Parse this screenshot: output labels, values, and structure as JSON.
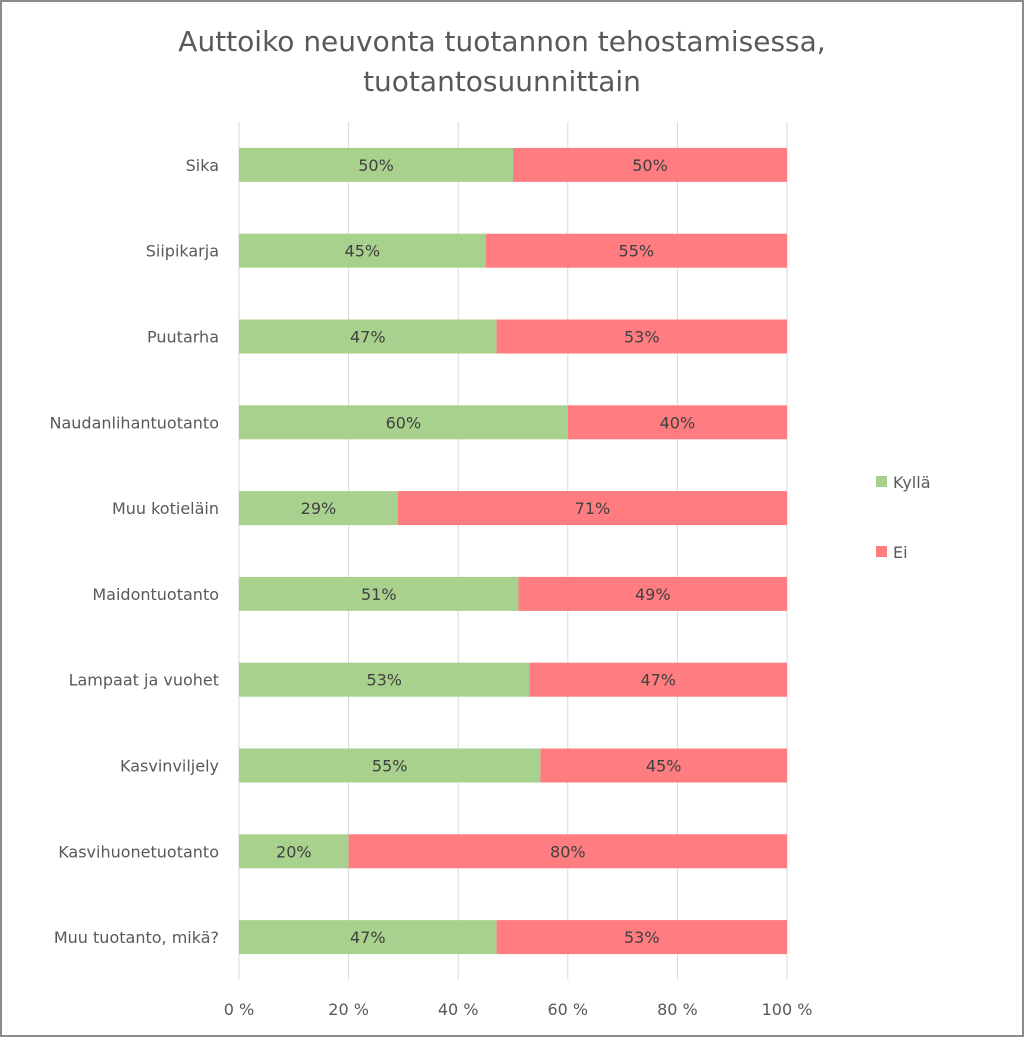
{
  "chart_data": {
    "type": "bar",
    "orientation": "horizontal",
    "stacked": "percent",
    "title": "Auttoiko neuvonta tuotannon tehostamisessa, tuotantosuunnittain",
    "title_lines": [
      "Auttoiko neuvonta tuotannon tehostamisessa,",
      "tuotantosuunnittain"
    ],
    "categories": [
      "Sika",
      "Siipikarja",
      "Puutarha",
      "Naudanlihantuotanto",
      "Muu kotieläin",
      "Maidontuotanto",
      "Lampaat ja vuohet",
      "Kasvinviljely",
      "Kasvihuonetuotanto",
      "Muu tuotanto, mikä?"
    ],
    "series": [
      {
        "name": "Kyllä",
        "color": "#a9d18e",
        "values": [
          50,
          45,
          47,
          60,
          29,
          51,
          53,
          55,
          20,
          47
        ],
        "labels": [
          "50%",
          "45%",
          "47%",
          "60%",
          "29%",
          "51%",
          "53%",
          "55%",
          "20%",
          "47%"
        ]
      },
      {
        "name": "Ei",
        "color": "#ff7c80",
        "values": [
          50,
          55,
          53,
          40,
          71,
          49,
          47,
          45,
          80,
          53
        ],
        "labels": [
          "50%",
          "55%",
          "53%",
          "40%",
          "71%",
          "49%",
          "47%",
          "45%",
          "80%",
          "53%"
        ]
      }
    ],
    "xlim": [
      0,
      100
    ],
    "x_ticks": [
      0,
      20,
      40,
      60,
      80,
      100
    ],
    "x_tick_labels": [
      "0 %",
      "20 %",
      "40 %",
      "60 %",
      "80 %",
      "100 %"
    ],
    "grid": true,
    "legend": "right"
  }
}
